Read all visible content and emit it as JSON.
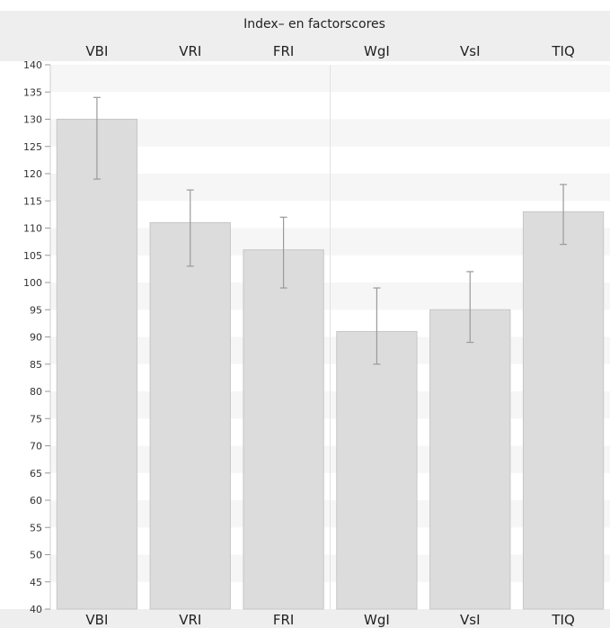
{
  "chart_data": {
    "type": "bar",
    "title": "Index– en factorscores",
    "categories": [
      "VBI",
      "VRI",
      "FRI",
      "WgI",
      "VsI",
      "TIQ"
    ],
    "values": [
      130,
      111,
      106,
      91,
      95,
      113
    ],
    "error_low": [
      119,
      103,
      99,
      85,
      89,
      107
    ],
    "error_high": [
      134,
      117,
      112,
      99,
      102,
      118
    ],
    "ylim": [
      40,
      140
    ],
    "yticks": [
      40,
      45,
      50,
      55,
      60,
      65,
      70,
      75,
      80,
      85,
      90,
      95,
      100,
      105,
      110,
      115,
      120,
      125,
      130,
      135,
      140
    ],
    "xlabel": "",
    "ylabel": "",
    "grid": "alternating horizontal bands",
    "divider_after_index": 2,
    "category_labels_position": "top and bottom",
    "colors": {
      "bar_fill": "#dcdcdc",
      "bar_stroke": "#c6c6c6",
      "error_bar": "#9a9a9a",
      "band": "#f6f6f6",
      "header_bg": "#eeeeee"
    }
  }
}
